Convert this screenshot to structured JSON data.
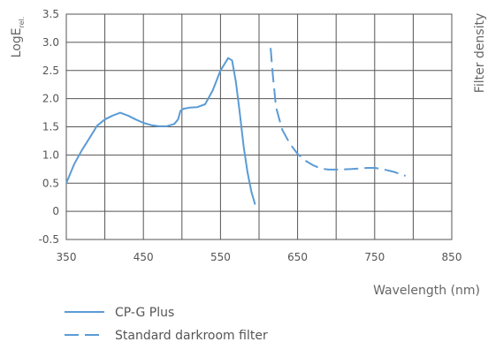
{
  "chart_data": {
    "type": "line",
    "xlabel": "Wavelength (nm)",
    "ylabel_main": "LogE",
    "ylabel_sub": "rel.",
    "y2label": "Filter density",
    "xlim": [
      350,
      850
    ],
    "ylim": [
      -0.5,
      3.5
    ],
    "x_ticks": [
      350,
      400,
      450,
      500,
      550,
      600,
      650,
      700,
      750,
      800,
      850
    ],
    "x_tick_labels": [
      "350",
      "450",
      "550",
      "650",
      "750",
      "850"
    ],
    "x_tick_label_values": [
      350,
      450,
      550,
      650,
      750,
      850
    ],
    "y_ticks": [
      -0.5,
      0,
      0.5,
      1.0,
      1.5,
      2.0,
      2.5,
      3.0,
      3.5
    ],
    "y_tick_labels": [
      "-0.5",
      "0",
      "0.5",
      "1.0",
      "1.5",
      "2.0",
      "2.5",
      "3.0",
      "3.5"
    ],
    "grid": true,
    "series": [
      {
        "name": "CP-G Plus",
        "style": "solid",
        "color": "#5b9bd5",
        "points": [
          [
            350,
            0.5
          ],
          [
            360,
            0.83
          ],
          [
            370,
            1.08
          ],
          [
            380,
            1.3
          ],
          [
            390,
            1.52
          ],
          [
            400,
            1.63
          ],
          [
            410,
            1.7
          ],
          [
            420,
            1.75
          ],
          [
            430,
            1.7
          ],
          [
            440,
            1.63
          ],
          [
            450,
            1.57
          ],
          [
            460,
            1.53
          ],
          [
            470,
            1.51
          ],
          [
            480,
            1.51
          ],
          [
            490,
            1.55
          ],
          [
            495,
            1.63
          ],
          [
            498,
            1.78
          ],
          [
            502,
            1.82
          ],
          [
            510,
            1.84
          ],
          [
            520,
            1.85
          ],
          [
            530,
            1.9
          ],
          [
            540,
            2.15
          ],
          [
            550,
            2.5
          ],
          [
            560,
            2.72
          ],
          [
            565,
            2.68
          ],
          [
            570,
            2.3
          ],
          [
            575,
            1.75
          ],
          [
            580,
            1.15
          ],
          [
            585,
            0.7
          ],
          [
            590,
            0.35
          ],
          [
            595,
            0.12
          ]
        ]
      },
      {
        "name": "Standard darkroom filter",
        "style": "dashed",
        "color": "#5b9bd5",
        "points": [
          [
            615,
            2.9
          ],
          [
            618,
            2.4
          ],
          [
            622,
            1.85
          ],
          [
            630,
            1.45
          ],
          [
            640,
            1.2
          ],
          [
            650,
            1.02
          ],
          [
            660,
            0.9
          ],
          [
            670,
            0.82
          ],
          [
            680,
            0.76
          ],
          [
            690,
            0.74
          ],
          [
            700,
            0.74
          ],
          [
            720,
            0.75
          ],
          [
            740,
            0.77
          ],
          [
            750,
            0.77
          ],
          [
            760,
            0.75
          ],
          [
            775,
            0.7
          ],
          [
            790,
            0.63
          ]
        ]
      }
    ]
  }
}
